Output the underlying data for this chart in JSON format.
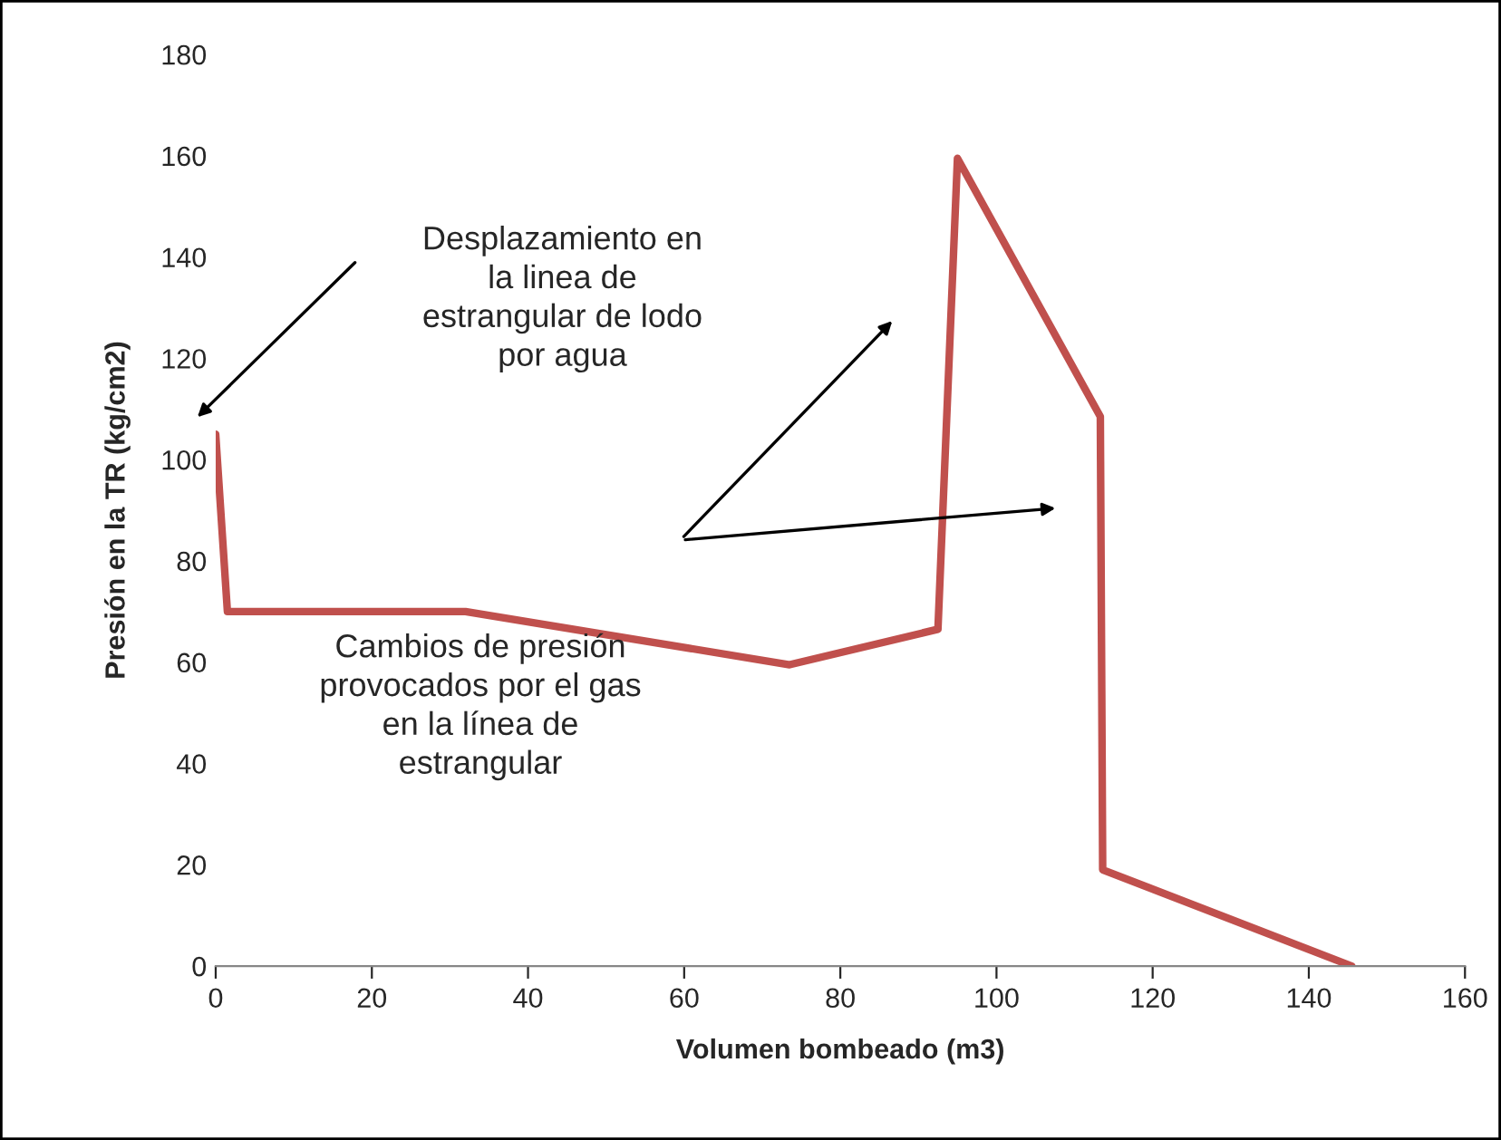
{
  "chart_data": {
    "type": "line",
    "xlabel": "Volumen bombeado (m3)",
    "ylabel": "Presión en la TR (kg/cm2)",
    "x": [
      0,
      1.5,
      32,
      73.5,
      92.5,
      95,
      113.3,
      113.6,
      145.5
    ],
    "series": [
      {
        "color": "#c0504d",
        "values": [
          105,
          70,
          70,
          59.5,
          66.5,
          159.5,
          108.5,
          19,
          0
        ]
      }
    ],
    "xlim": [
      0,
      160
    ],
    "xticks": [
      0,
      20,
      40,
      60,
      80,
      100,
      120,
      140,
      160
    ],
    "ylim": [
      0,
      180
    ],
    "yticks": [
      0,
      20,
      40,
      60,
      80,
      100,
      120,
      140,
      160,
      180
    ],
    "grid": false,
    "marker": "none",
    "line_style": "solid",
    "annotations": [
      "Desplazamiento en\nla linea de\nestrangular de lodo\npor agua",
      "Cambios de presión\nprovocados por el gas\nen la línea de\nestrangular"
    ]
  }
}
